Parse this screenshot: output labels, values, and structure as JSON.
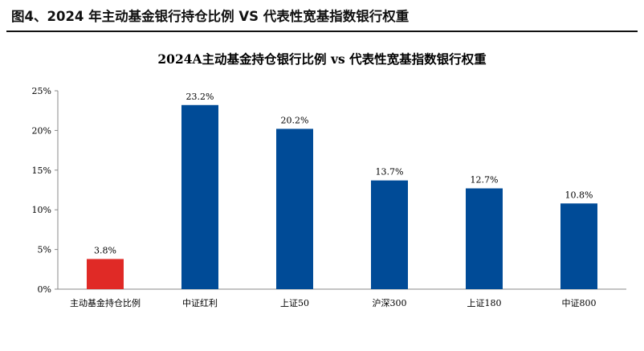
{
  "figure_heading": "图4、2024 年主动基金银行持仓比例 VS 代表性宽基指数银行权重",
  "chart_data": {
    "type": "bar",
    "title": "2024A主动基金持仓银行比例 vs 代表性宽基指数银行权重",
    "categories": [
      "主动基金持仓比例",
      "中证红利",
      "上证50",
      "沪深300",
      "上证180",
      "中证800"
    ],
    "values": [
      3.8,
      23.2,
      20.2,
      13.7,
      12.7,
      10.8
    ],
    "value_labels": [
      "3.8%",
      "23.2%",
      "20.2%",
      "13.7%",
      "12.7%",
      "10.8%"
    ],
    "ylim": [
      0,
      25
    ],
    "yticks": [
      0,
      5,
      10,
      15,
      20,
      25
    ],
    "ytick_labels": [
      "0%",
      "5%",
      "10%",
      "15%",
      "20%",
      "25%"
    ],
    "xlabel": "",
    "ylabel": "",
    "grid": false,
    "legend": "none",
    "colors": [
      "#e02a26",
      "#004b97",
      "#004b97",
      "#004b97",
      "#004b97",
      "#004b97"
    ]
  }
}
